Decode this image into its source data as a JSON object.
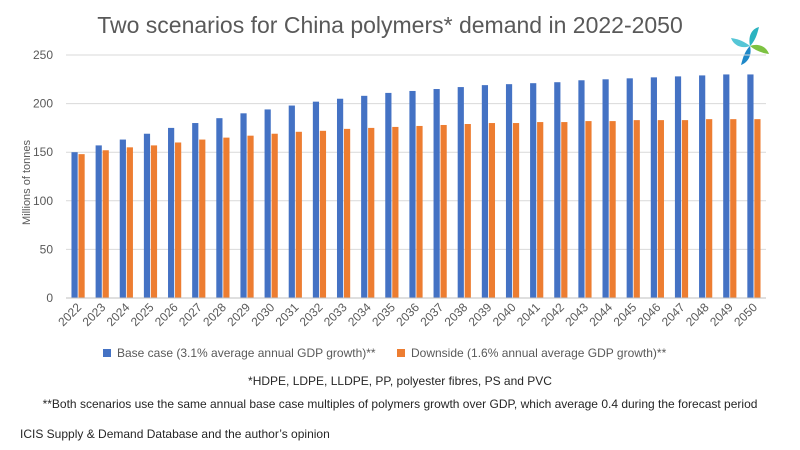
{
  "page": {
    "title": "Two scenarios for China polymers* demand in 2022-2050",
    "footnote_1": "*HDPE, LDPE, LLDPE, PP, polyester fibres, PS and PVC",
    "footnote_2": "**Both scenarios use the same annual base case multiples of polymers growth over GDP, which average 0.4 during the forecast period",
    "source": "ICIS Supply & Demand Database and the author’s opinion",
    "logo_icon": "icis-pinwheel-logo-icon"
  },
  "chart_data": {
    "type": "bar",
    "title": "Two scenarios for China polymers* demand in 2022-2050",
    "xlabel": "",
    "ylabel": "Millions of tonnes",
    "ylim": [
      0,
      250
    ],
    "yticks": [
      0,
      50,
      100,
      150,
      200,
      250
    ],
    "grid": true,
    "legend_position": "bottom",
    "categories": [
      "2022",
      "2023",
      "2024",
      "2025",
      "2026",
      "2027",
      "2028",
      "2029",
      "2030",
      "2031",
      "2032",
      "2033",
      "2034",
      "2035",
      "2036",
      "2037",
      "2038",
      "2039",
      "2040",
      "2041",
      "2042",
      "2043",
      "2044",
      "2045",
      "2046",
      "2047",
      "2048",
      "2049",
      "2050"
    ],
    "series": [
      {
        "name": "Base case (3.1% average annual GDP growth)**",
        "color": "#4472C4",
        "values": [
          150,
          157,
          163,
          169,
          175,
          180,
          185,
          190,
          194,
          198,
          202,
          205,
          208,
          211,
          213,
          215,
          217,
          219,
          220,
          221,
          222,
          224,
          225,
          226,
          227,
          228,
          229,
          230,
          230
        ]
      },
      {
        "name": "Downside (1.6% annual average GDP growth)**",
        "color": "#ED7D31",
        "values": [
          148,
          152,
          155,
          157,
          160,
          163,
          165,
          167,
          169,
          171,
          172,
          174,
          175,
          176,
          177,
          178,
          179,
          180,
          180,
          181,
          181,
          182,
          182,
          183,
          183,
          183,
          184,
          184,
          184
        ]
      }
    ]
  }
}
